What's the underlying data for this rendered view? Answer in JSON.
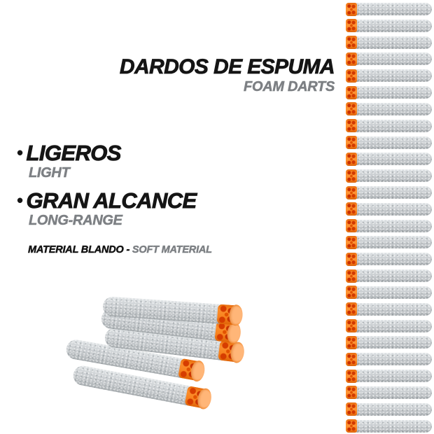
{
  "title": {
    "es": "DARDOS DE ESPUMA",
    "en": "FOAM DARTS"
  },
  "features": [
    {
      "bullet": "•",
      "es": "LIGEROS",
      "en": "LIGHT"
    },
    {
      "bullet": "•",
      "es": "GRAN ALCANCE",
      "en": "LONG-RANGE"
    }
  ],
  "material": {
    "es": "MATERIAL BLANDO - ",
    "en": "SOFT MATERIAL"
  },
  "product": {
    "item": "foam dart",
    "colors": {
      "background": "#ffffff",
      "text_black": "#151515",
      "text_gray": "#7d8084",
      "foam_gray": "#c6cacd",
      "tip_orange": "#f8831f",
      "tip_hole_red": "#cc3300",
      "tip_face_pale": "#ffb075"
    },
    "dart_column": {
      "count": 26,
      "side": "right",
      "orientation": "horizontal",
      "tip_direction": "left"
    },
    "dart_cluster": {
      "count": 5,
      "position": "bottom-left",
      "tip_direction": "right"
    }
  }
}
